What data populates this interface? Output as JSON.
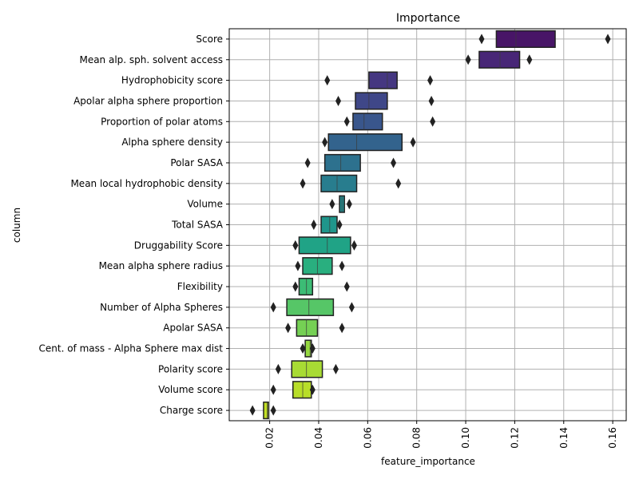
{
  "chart_data": {
    "type": "boxen",
    "title": "Importance",
    "xlabel": "feature_importance",
    "ylabel": "column",
    "xlim": [
      0.0035,
      0.1655
    ],
    "xticks": [
      0.02,
      0.04,
      0.06,
      0.08,
      0.1,
      0.12,
      0.14,
      0.16
    ],
    "xtick_labels": [
      "0.02",
      "0.04",
      "0.06",
      "0.08",
      "0.10",
      "0.12",
      "0.14",
      "0.16"
    ],
    "grid": true,
    "categories": [
      {
        "name": "Score",
        "q1": 0.1125,
        "median": 0.1205,
        "q3": 0.1365,
        "outliers": [
          0.1065,
          0.158
        ],
        "color": "#481567"
      },
      {
        "name": "Mean alp. sph. solvent access",
        "q1": 0.1055,
        "median": 0.114,
        "q3": 0.122,
        "outliers": [
          0.101,
          0.126
        ],
        "color": "#482677"
      },
      {
        "name": "Hydrophobicity score",
        "q1": 0.0605,
        "median": 0.068,
        "q3": 0.072,
        "outliers": [
          0.0435,
          0.0855
        ],
        "color": "#453781"
      },
      {
        "name": "Apolar alpha sphere proportion",
        "q1": 0.055,
        "median": 0.0605,
        "q3": 0.068,
        "outliers": [
          0.048,
          0.086
        ],
        "color": "#3F4788"
      },
      {
        "name": "Proportion of polar atoms",
        "q1": 0.054,
        "median": 0.0585,
        "q3": 0.066,
        "outliers": [
          0.0515,
          0.0865
        ],
        "color": "#39568C"
      },
      {
        "name": "Alpha sphere density",
        "q1": 0.044,
        "median": 0.0555,
        "q3": 0.074,
        "outliers": [
          0.0425,
          0.0785
        ],
        "color": "#33638D"
      },
      {
        "name": "Polar SASA",
        "q1": 0.0425,
        "median": 0.049,
        "q3": 0.057,
        "outliers": [
          0.0355,
          0.0705
        ],
        "color": "#2D718E"
      },
      {
        "name": "Mean local hydrophobic density",
        "q1": 0.041,
        "median": 0.0475,
        "q3": 0.0555,
        "outliers": [
          0.0335,
          0.0725
        ],
        "color": "#287D8E"
      },
      {
        "name": "Volume",
        "q1": 0.0485,
        "median": 0.0495,
        "q3": 0.0505,
        "outliers": [
          0.0455,
          0.0525
        ],
        "color": "#238A8D"
      },
      {
        "name": "Total SASA",
        "q1": 0.041,
        "median": 0.0445,
        "q3": 0.0475,
        "outliers": [
          0.038,
          0.0485
        ],
        "color": "#1F968B"
      },
      {
        "name": "Druggability Score",
        "q1": 0.032,
        "median": 0.0435,
        "q3": 0.053,
        "outliers": [
          0.0305,
          0.0545
        ],
        "color": "#20A386"
      },
      {
        "name": "Mean alpha sphere radius",
        "q1": 0.0335,
        "median": 0.0395,
        "q3": 0.0455,
        "outliers": [
          0.0315,
          0.0495
        ],
        "color": "#29AF7F"
      },
      {
        "name": "Flexibility",
        "q1": 0.032,
        "median": 0.035,
        "q3": 0.0375,
        "outliers": [
          0.0305,
          0.0515
        ],
        "color": "#3CBC75"
      },
      {
        "name": "Number of Alpha Spheres",
        "q1": 0.027,
        "median": 0.036,
        "q3": 0.046,
        "outliers": [
          0.0215,
          0.0535
        ],
        "color": "#56C667"
      },
      {
        "name": "Apolar SASA",
        "q1": 0.031,
        "median": 0.035,
        "q3": 0.0395,
        "outliers": [
          0.0275,
          0.0495
        ],
        "color": "#75D054"
      },
      {
        "name": "Cent. of mass - Alpha Sphere max dist",
        "q1": 0.0345,
        "median": 0.0365,
        "q3": 0.037,
        "outliers": [
          0.0335,
          0.0375
        ],
        "color": "#95D840"
      },
      {
        "name": "Polarity score",
        "q1": 0.029,
        "median": 0.035,
        "q3": 0.0415,
        "outliers": [
          0.0235,
          0.047
        ],
        "color": "#A8DB34"
      },
      {
        "name": "Volume score",
        "q1": 0.0295,
        "median": 0.0335,
        "q3": 0.037,
        "outliers": [
          0.0215,
          0.0375
        ],
        "color": "#B8DE29"
      },
      {
        "name": "Charge score",
        "q1": 0.0175,
        "median": 0.019,
        "q3": 0.0195,
        "outliers": [
          0.013,
          0.0215
        ],
        "color": "#C2DF23"
      }
    ]
  }
}
